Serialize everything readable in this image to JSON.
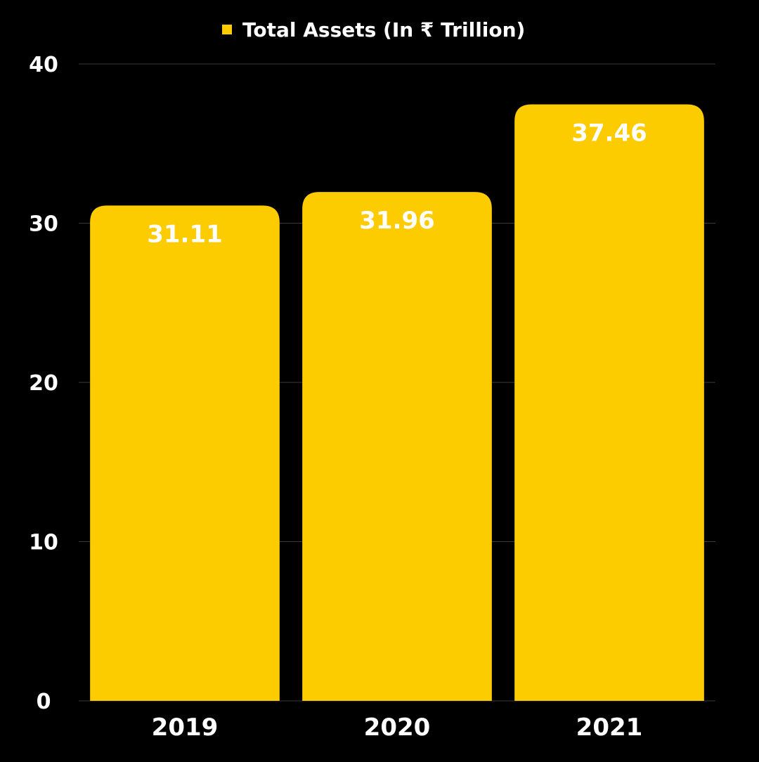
{
  "chart_data": {
    "type": "bar",
    "categories": [
      "2019",
      "2020",
      "2021"
    ],
    "series": [
      {
        "name": "Total Assets (In ₹ Trillion)",
        "values": [
          31.11,
          31.96,
          37.46
        ],
        "color": "#FCCB00"
      }
    ],
    "data_labels": [
      "31.11",
      "31.96",
      "37.46"
    ],
    "y_ticks": [
      "0",
      "10",
      "20",
      "30",
      "40"
    ],
    "ylim": [
      0,
      40
    ],
    "grid": true,
    "legend": "top-center"
  },
  "colors": {
    "background": "#000000",
    "bar": "#FCCB00",
    "text": "#FFFFFF",
    "grid": "#3a3a3a"
  }
}
